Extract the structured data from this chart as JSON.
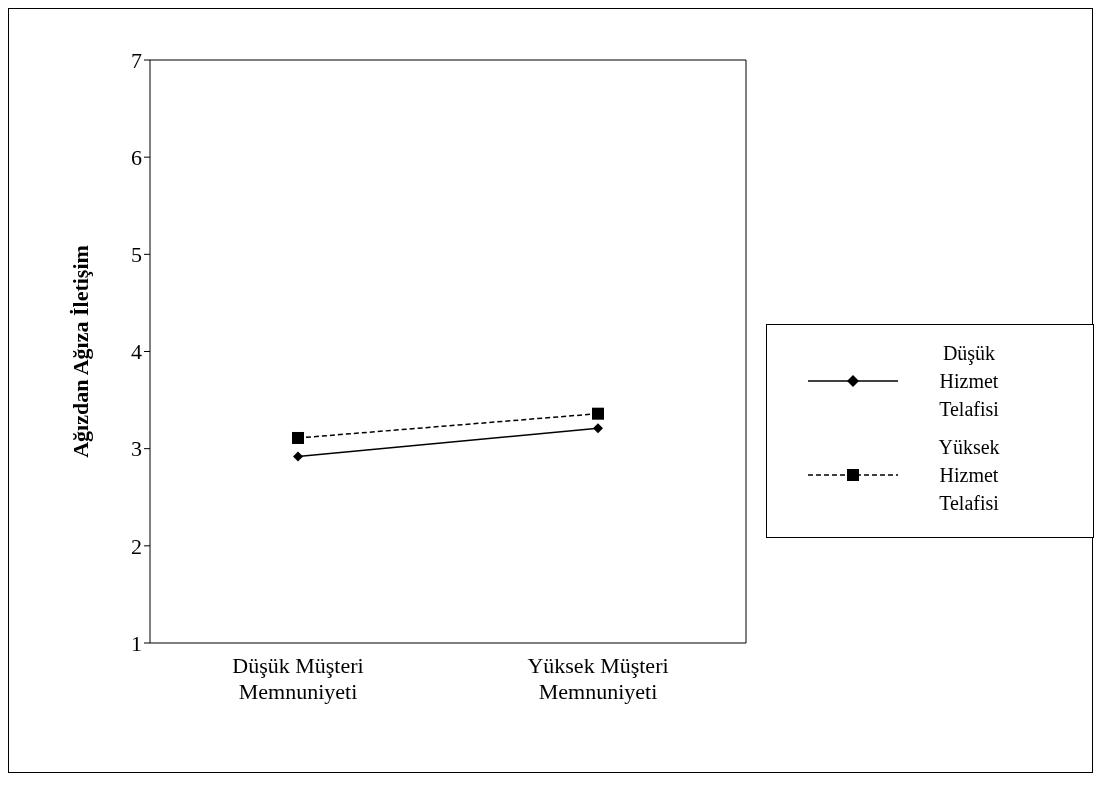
{
  "chart_data": {
    "type": "line",
    "ylabel": "Ağızdan Ağıza İletişim",
    "categories": [
      "Düşük Müşteri Memnuniyeti",
      "Yüksek Müşteri Memnuniyeti"
    ],
    "series": [
      {
        "name": "Düşük Hizmet Telafisi",
        "color": "#000000",
        "values": [
          2.92,
          3.21
        ],
        "marker": "diamond",
        "line_style": "solid"
      },
      {
        "name": "Yüksek Hizmet Telafisi",
        "color": "#000000",
        "values": [
          3.11,
          3.36
        ],
        "marker": "square",
        "line_style": "dashed"
      }
    ],
    "ylim": [
      1,
      7
    ],
    "yticks": [
      1,
      2,
      3,
      4,
      5,
      6,
      7
    ],
    "grid": false,
    "legend": "right"
  }
}
